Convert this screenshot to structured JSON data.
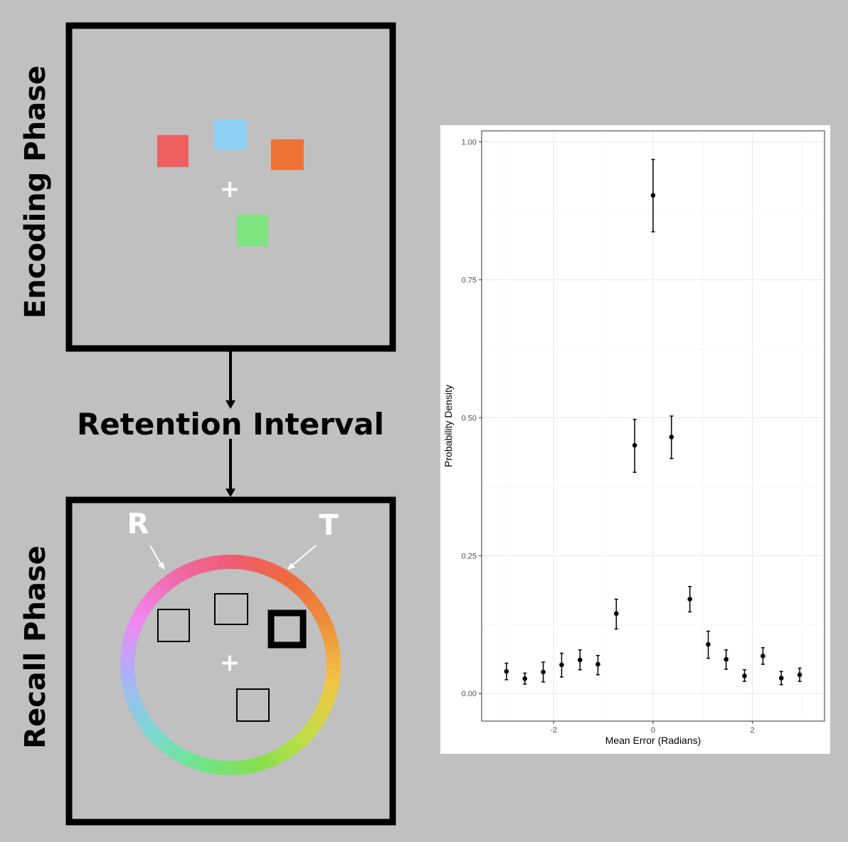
{
  "diagram": {
    "encoding_label": "Encoding Phase",
    "retention_label": "Retention Interval",
    "recall_label": "Recall Phase",
    "fixation_glyph": "+",
    "r_marker": "R",
    "t_marker": "T",
    "stimulus_colors": {
      "red": "#ee5f5f",
      "blue": "#8fd0f5",
      "orange": "#ee7234",
      "green": "#7de47f"
    },
    "color_wheel_stops": [
      "#ef5c72",
      "#ee6a3e",
      "#ee8f3a",
      "#f3c444",
      "#c4dd44",
      "#86de4f",
      "#6fe68a",
      "#7ad8d2",
      "#a6b4f7",
      "#f187f1",
      "#f06aa8",
      "#ef5c72"
    ],
    "arrow_icon": "arrow-down-icon"
  },
  "chart_data": {
    "type": "scatter",
    "xlabel": "Mean Error (Radians)",
    "ylabel": "Probability Density",
    "xlim": [
      -3.45,
      3.45
    ],
    "ylim": [
      -0.05,
      1.02
    ],
    "x_ticks": [
      -2,
      0,
      2
    ],
    "x_tick_labels": [
      "-2",
      "0",
      "2"
    ],
    "y_ticks": [
      0,
      0.25,
      0.5,
      0.75,
      1
    ],
    "y_tick_labels": [
      "0.00",
      "0.25",
      "0.50",
      "0.75",
      "1.00"
    ],
    "grid": true,
    "error_bars": true,
    "points": [
      {
        "x": -2.95,
        "y": 0.04,
        "lo": 0.025,
        "hi": 0.055
      },
      {
        "x": -2.58,
        "y": 0.027,
        "lo": 0.017,
        "hi": 0.037
      },
      {
        "x": -2.21,
        "y": 0.039,
        "lo": 0.021,
        "hi": 0.057
      },
      {
        "x": -1.84,
        "y": 0.052,
        "lo": 0.03,
        "hi": 0.073
      },
      {
        "x": -1.47,
        "y": 0.061,
        "lo": 0.043,
        "hi": 0.079
      },
      {
        "x": -1.11,
        "y": 0.053,
        "lo": 0.034,
        "hi": 0.069
      },
      {
        "x": -0.74,
        "y": 0.145,
        "lo": 0.117,
        "hi": 0.171
      },
      {
        "x": -0.37,
        "y": 0.45,
        "lo": 0.401,
        "hi": 0.497
      },
      {
        "x": 0.0,
        "y": 0.903,
        "lo": 0.837,
        "hi": 0.968
      },
      {
        "x": 0.37,
        "y": 0.465,
        "lo": 0.426,
        "hi": 0.503
      },
      {
        "x": 0.74,
        "y": 0.171,
        "lo": 0.148,
        "hi": 0.194
      },
      {
        "x": 1.11,
        "y": 0.089,
        "lo": 0.064,
        "hi": 0.113
      },
      {
        "x": 1.47,
        "y": 0.062,
        "lo": 0.044,
        "hi": 0.079
      },
      {
        "x": 1.84,
        "y": 0.032,
        "lo": 0.022,
        "hi": 0.043
      },
      {
        "x": 2.21,
        "y": 0.068,
        "lo": 0.053,
        "hi": 0.083
      },
      {
        "x": 2.58,
        "y": 0.028,
        "lo": 0.016,
        "hi": 0.04
      },
      {
        "x": 2.95,
        "y": 0.034,
        "lo": 0.022,
        "hi": 0.046
      }
    ]
  }
}
